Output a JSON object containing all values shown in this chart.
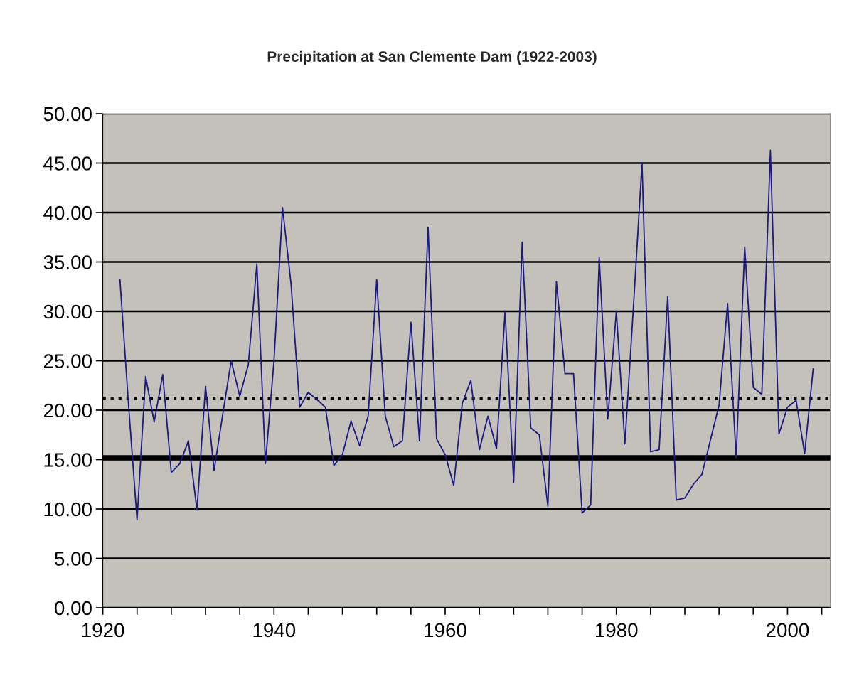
{
  "chart_data": {
    "type": "line",
    "title": "Precipitation at San Clemente Dam (1922-2003)",
    "x": [
      1922,
      1923,
      1924,
      1925,
      1926,
      1927,
      1928,
      1929,
      1930,
      1931,
      1932,
      1933,
      1934,
      1935,
      1936,
      1937,
      1938,
      1939,
      1940,
      1941,
      1942,
      1943,
      1944,
      1945,
      1946,
      1947,
      1948,
      1949,
      1950,
      1951,
      1952,
      1953,
      1954,
      1955,
      1956,
      1957,
      1958,
      1959,
      1960,
      1961,
      1962,
      1963,
      1964,
      1965,
      1966,
      1967,
      1968,
      1969,
      1970,
      1971,
      1972,
      1973,
      1974,
      1975,
      1976,
      1977,
      1978,
      1979,
      1980,
      1981,
      1982,
      1983,
      1984,
      1985,
      1986,
      1987,
      1988,
      1989,
      1990,
      1991,
      1992,
      1993,
      1994,
      1995,
      1996,
      1997,
      1998,
      1999,
      2000,
      2001,
      2002,
      2003
    ],
    "series": [
      {
        "color": "#1a1a80",
        "values": [
          33.2,
          20.6,
          8.9,
          23.4,
          18.8,
          23.6,
          13.7,
          14.6,
          16.9,
          9.9,
          22.4,
          13.9,
          19.5,
          25.0,
          21.4,
          24.6,
          34.8,
          14.6,
          25.0,
          40.5,
          32.7,
          20.3,
          21.8,
          21.1,
          20.3,
          14.4,
          15.5,
          18.9,
          16.4,
          19.4,
          33.2,
          19.4,
          16.3,
          16.9,
          28.9,
          16.9,
          38.5,
          17.1,
          15.5,
          12.4,
          20.7,
          23.0,
          16.0,
          19.4,
          16.1,
          30.0,
          12.7,
          37.0,
          18.2,
          17.5,
          10.3,
          33.0,
          23.7,
          23.7,
          9.6,
          10.4,
          35.4,
          19.1,
          30.0,
          16.6,
          30.5,
          45.0,
          15.8,
          16.0,
          31.5,
          10.9,
          11.1,
          12.5,
          13.5,
          17.0,
          20.5,
          30.8,
          15.2,
          36.5,
          22.3,
          21.6,
          46.3,
          17.6,
          20.3,
          21.0,
          15.6,
          24.2
        ]
      }
    ],
    "xlim": [
      1920,
      2005
    ],
    "xticks": [
      1920,
      {
        "value": 1924,
        "label": null
      },
      {
        "value": 1928,
        "label": null
      },
      {
        "value": 1932,
        "label": null
      },
      {
        "value": 1936,
        "label": null
      },
      1940,
      {
        "value": 1944,
        "label": null
      },
      {
        "value": 1948,
        "label": null
      },
      {
        "value": 1952,
        "label": null
      },
      {
        "value": 1956,
        "label": null
      },
      1960,
      {
        "value": 1964,
        "label": null
      },
      {
        "value": 1968,
        "label": null
      },
      {
        "value": 1972,
        "label": null
      },
      {
        "value": 1976,
        "label": null
      },
      1980,
      {
        "value": 1984,
        "label": null
      },
      {
        "value": 1988,
        "label": null
      },
      {
        "value": 1992,
        "label": null
      },
      {
        "value": 1996,
        "label": null
      },
      2000,
      {
        "value": 2004,
        "label": null
      }
    ],
    "ylim": [
      0,
      50
    ],
    "yticks": [
      {
        "value": 0,
        "label": "0.00"
      },
      {
        "value": 5,
        "label": "5.00"
      },
      {
        "value": 10,
        "label": "10.00"
      },
      {
        "value": 15,
        "label": "15.00"
      },
      {
        "value": 20,
        "label": "20.00"
      },
      {
        "value": 25,
        "label": "25.00"
      },
      {
        "value": 30,
        "label": "30.00"
      },
      {
        "value": 35,
        "label": "35.00"
      },
      {
        "value": 40,
        "label": "40.00"
      },
      {
        "value": 45,
        "label": "45.00"
      },
      {
        "value": 50,
        "label": "50.00"
      }
    ],
    "grid": "y",
    "line_style": "solid",
    "ref_lines": [
      {
        "axis": "y",
        "value": 21.2,
        "color": "#000000",
        "line_style": "dotted"
      },
      {
        "axis": "y",
        "value": 15.2,
        "color": "#000000",
        "line_style": "solid"
      }
    ]
  }
}
